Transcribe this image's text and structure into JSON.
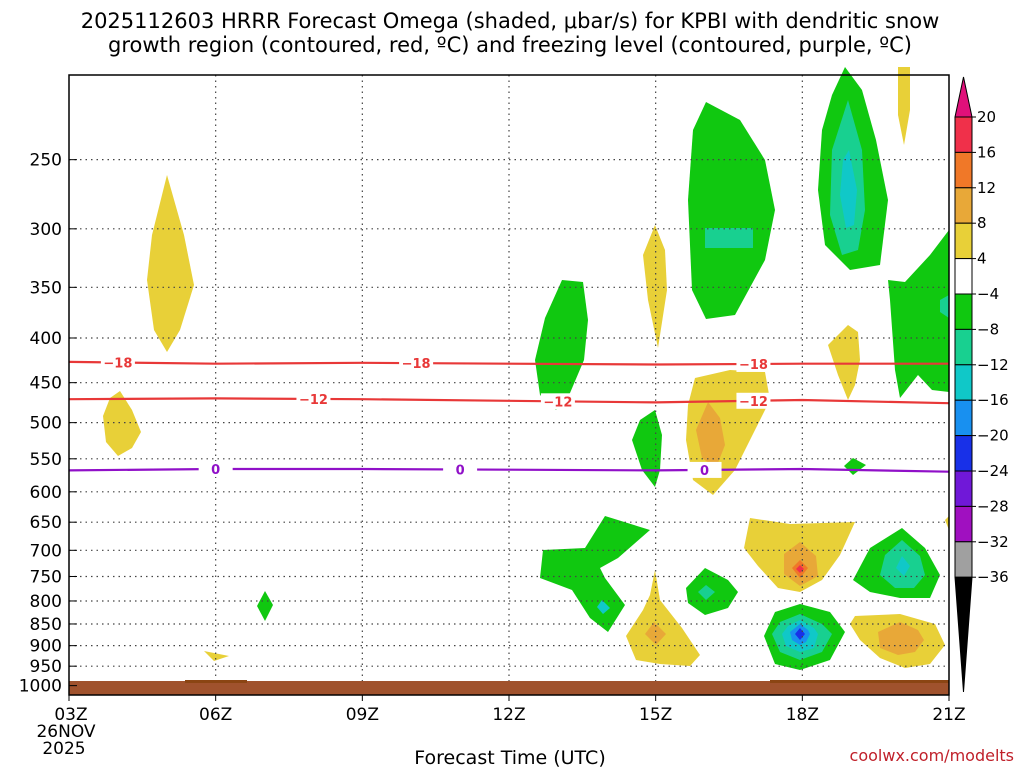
{
  "title_line1": "2025112603 HRRR Forecast Omega (shaded, μbar/s) for KPBI with dendritic snow",
  "title_line2": "growth region (contoured, red, ºC) and freezing level (contoured, purple, ºC)",
  "credit": "coolwx.com/modelts",
  "chart_data": {
    "type": "time-height cross section",
    "title": "2025112603 HRRR Forecast Omega (shaded, μbar/s) for KPBI with dendritic snow growth region (contoured, red, ºC) and freezing level (contoured, purple, ºC)",
    "xlabel": "Forecast Time (UTC)",
    "ylabel": "",
    "x_range_hours": [
      3,
      21
    ],
    "y_range_mb": [
      200,
      1025
    ],
    "y_scale": "log-pressure (inverted)",
    "x_ticks": [
      {
        "hour": 3,
        "label": "03Z",
        "label2": "26NOV",
        "label3": "2025"
      },
      {
        "hour": 6,
        "label": "06Z"
      },
      {
        "hour": 9,
        "label": "09Z"
      },
      {
        "hour": 12,
        "label": "12Z"
      },
      {
        "hour": 15,
        "label": "15Z"
      },
      {
        "hour": 18,
        "label": "18Z"
      },
      {
        "hour": 21,
        "label": "21Z"
      }
    ],
    "y_ticks": [
      {
        "p": 250,
        "label": "250"
      },
      {
        "p": 300,
        "label": "300"
      },
      {
        "p": 350,
        "label": "350"
      },
      {
        "p": 400,
        "label": "400"
      },
      {
        "p": 450,
        "label": "450"
      },
      {
        "p": 500,
        "label": "500"
      },
      {
        "p": 550,
        "label": "550"
      },
      {
        "p": 600,
        "label": "600"
      },
      {
        "p": 650,
        "label": "650"
      },
      {
        "p": 700,
        "label": "700"
      },
      {
        "p": 750,
        "label": "750"
      },
      {
        "p": 800,
        "label": "800"
      },
      {
        "p": 850,
        "label": "850"
      },
      {
        "p": 900,
        "label": "900"
      },
      {
        "p": 950,
        "label": "950"
      },
      {
        "p": 1000,
        "label": "1000"
      }
    ],
    "colorbar": {
      "levels": [
        {
          "label": "20",
          "color": "#f0304a"
        },
        {
          "label": "16",
          "color": "#f07828"
        },
        {
          "label": "12",
          "color": "#e8a838"
        },
        {
          "label": "8",
          "color": "#e8d038"
        },
        {
          "label": "4",
          "color": "#ffffff"
        },
        {
          "label": "−4",
          "color": "#10c810"
        },
        {
          "label": "−8",
          "color": "#18d090"
        },
        {
          "label": "−12",
          "color": "#10c8c8"
        },
        {
          "label": "−16",
          "color": "#1890f0"
        },
        {
          "label": "−20",
          "color": "#1830e8"
        },
        {
          "label": "−24",
          "color": "#7018d8"
        },
        {
          "label": "−28",
          "color": "#a010c0"
        },
        {
          "label": "−32",
          "color": "#a0a0a0"
        },
        {
          "label": "−36",
          "color": "#000000"
        }
      ],
      "top_cap_color": "#e0107a",
      "bottom_cap_color": "#000000"
    },
    "contours": [
      {
        "name": "dgz-minus18",
        "value": -18,
        "label": "−18",
        "color": "#e83838",
        "points": [
          [
            3,
            426
          ],
          [
            6,
            428
          ],
          [
            9,
            427
          ],
          [
            12,
            428
          ],
          [
            15,
            429
          ],
          [
            18,
            428
          ],
          [
            21,
            428
          ]
        ],
        "label_hours": [
          4.0,
          10.1,
          17.0
        ]
      },
      {
        "name": "dgz-minus12",
        "value": -12,
        "label": "−12",
        "color": "#e83838",
        "points": [
          [
            3,
            470
          ],
          [
            6,
            469
          ],
          [
            9,
            470
          ],
          [
            12,
            472
          ],
          [
            15,
            474
          ],
          [
            18,
            471
          ],
          [
            21,
            475
          ]
        ],
        "label_hours": [
          8.0,
          13.0,
          17.0
        ]
      },
      {
        "name": "freezing-level",
        "value": 0,
        "label": "0",
        "color": "#9010c8",
        "points": [
          [
            3,
            567
          ],
          [
            6,
            565
          ],
          [
            9,
            565
          ],
          [
            12,
            566
          ],
          [
            15,
            567
          ],
          [
            18,
            565
          ],
          [
            21,
            569
          ]
        ],
        "label_hours": [
          6.0,
          11.0,
          16.0
        ]
      }
    ],
    "omega_features": [
      {
        "hour": 5.0,
        "p": 345,
        "value": 5,
        "color": "#e8d038"
      },
      {
        "hour": 4.0,
        "p": 525,
        "value": 5,
        "color": "#e8d038"
      },
      {
        "hour": 6.0,
        "p": 945,
        "value": 5,
        "color": "#e8d038"
      },
      {
        "hour": 7.0,
        "p": 830,
        "value": -5,
        "color": "#10c810"
      },
      {
        "hour": 13.0,
        "p": 425,
        "value": -6,
        "color": "#10c810"
      },
      {
        "hour": 14.0,
        "p": 745,
        "value": -6,
        "color": "#10c810"
      },
      {
        "hour": 15.0,
        "p": 365,
        "value": 5,
        "color": "#e8d038"
      },
      {
        "hour": 15.0,
        "p": 570,
        "value": -5,
        "color": "#10c810"
      },
      {
        "hour": 15.0,
        "p": 880,
        "value": 10,
        "color": "#e8a838"
      },
      {
        "hour": 16.5,
        "p": 290,
        "value": -7,
        "color": "#10c810"
      },
      {
        "hour": 16.0,
        "p": 800,
        "value": -9,
        "color": "#18d090"
      },
      {
        "hour": 16.5,
        "p": 530,
        "value": 9,
        "color": "#e8a838"
      },
      {
        "hour": 18.0,
        "p": 740,
        "value": 14,
        "color": "#f07828"
      },
      {
        "hour": 18.0,
        "p": 890,
        "value": -20,
        "color": "#1830e8"
      },
      {
        "hour": 19.0,
        "p": 290,
        "value": -14,
        "color": "#10c8c8"
      },
      {
        "hour": 19.0,
        "p": 440,
        "value": 5,
        "color": "#e8d038"
      },
      {
        "hour": 20.0,
        "p": 750,
        "value": -11,
        "color": "#18d090"
      },
      {
        "hour": 20.0,
        "p": 900,
        "value": 9,
        "color": "#e8a838"
      },
      {
        "hour": 20.5,
        "p": 390,
        "value": -6,
        "color": "#10c810"
      }
    ]
  }
}
